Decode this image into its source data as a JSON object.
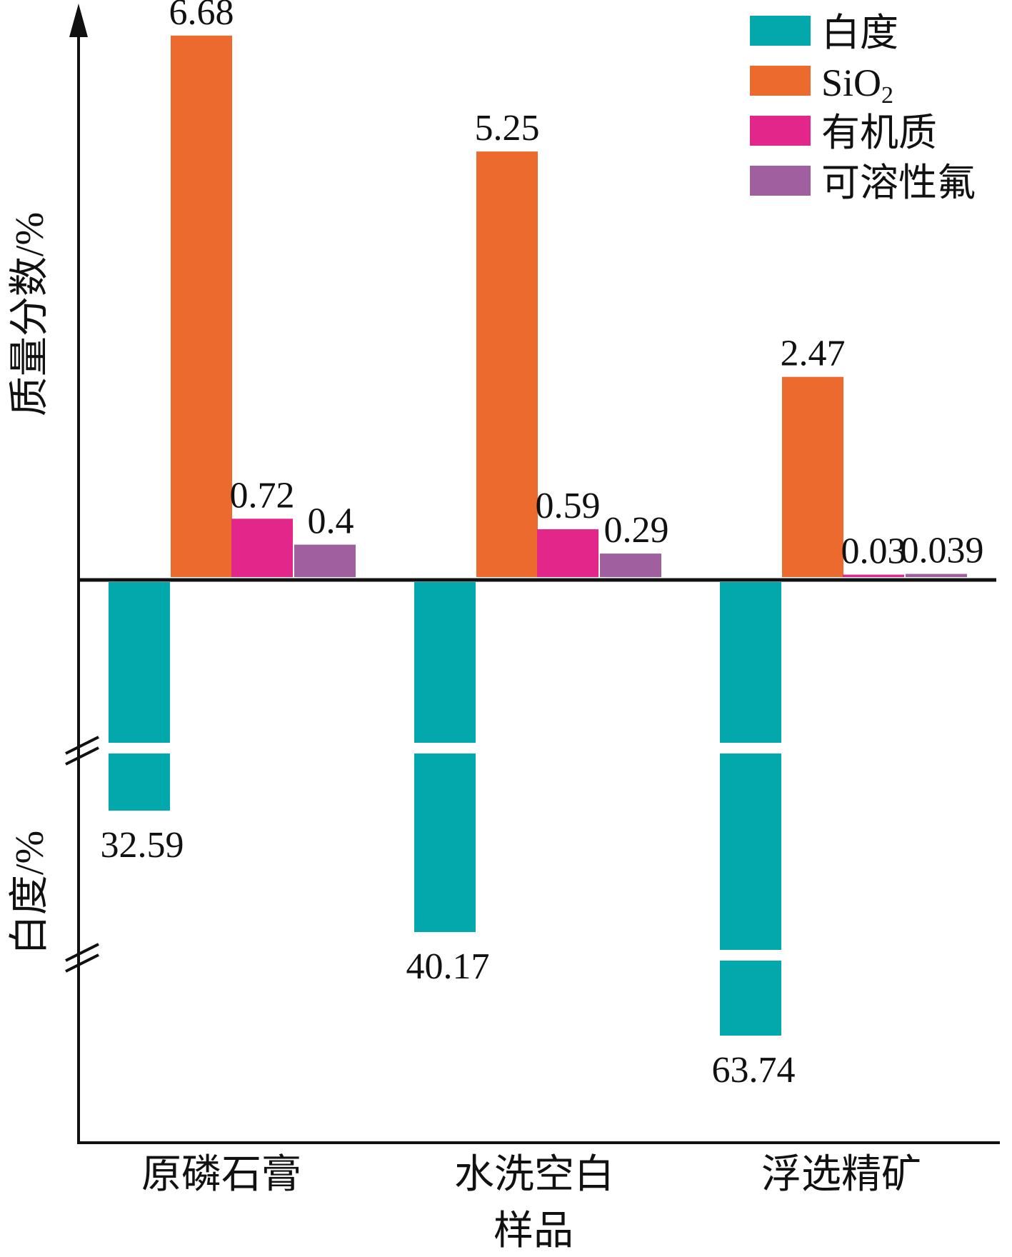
{
  "chart_data": {
    "type": "bar",
    "xlabel": "样品",
    "ylabel_top": "质量分数/%",
    "ylabel_bottom": "白度/%",
    "categories": [
      "原磷石膏",
      "水洗空白",
      "浮选精矿"
    ],
    "series": [
      {
        "name": "白度",
        "values": [
          32.59,
          40.17,
          63.74
        ],
        "color": "#02a8ac",
        "direction": "down"
      },
      {
        "name": "SiO",
        "values": [
          6.68,
          5.25,
          2.47
        ],
        "color": "#ec6a2e",
        "direction": "up"
      },
      {
        "name": "有机质",
        "values": [
          0.72,
          0.59,
          0.03
        ],
        "color": "#e3278a",
        "direction": "up"
      },
      {
        "name": "可溶性氟",
        "values": [
          0.4,
          0.29,
          0.039
        ],
        "color": "#a0609f",
        "direction": "up"
      }
    ],
    "value_labels": {
      "白度": [
        "32.59",
        "40.17",
        "63.74"
      ],
      "SiO": [
        "6.68",
        "5.25",
        "2.47"
      ],
      "有机质": [
        "0.72",
        "0.59",
        "0.03"
      ],
      "可溶性氟": [
        "0.4",
        "0.29",
        "0.039"
      ]
    },
    "sio2_subscript": "2",
    "legend_position": "top-right",
    "axis_breaks": true,
    "grid": false
  }
}
